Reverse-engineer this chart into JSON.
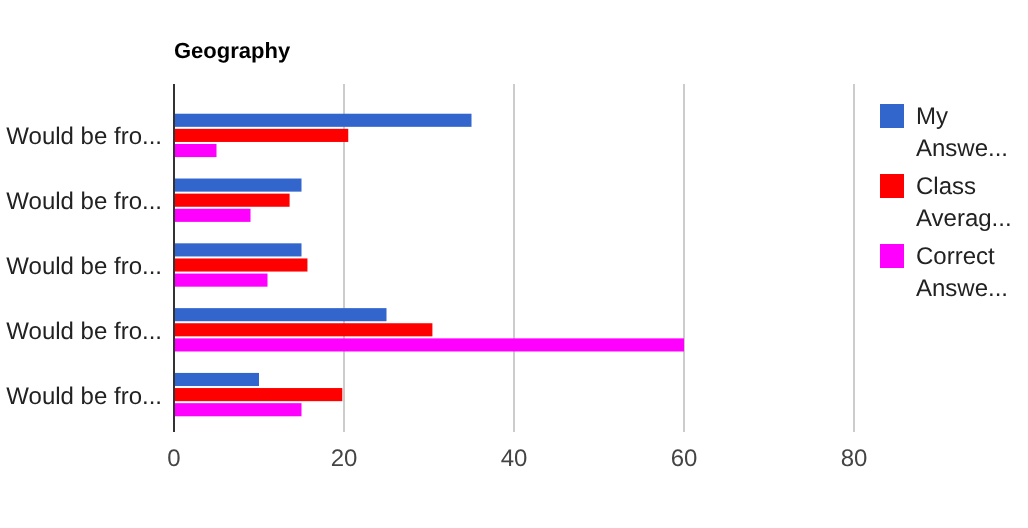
{
  "chart_data": {
    "type": "bar",
    "orientation": "horizontal",
    "title": "Geography",
    "categories": [
      "Would be fro...",
      "Would be fro...",
      "Would be fro...",
      "Would be fro...",
      "Would be fro..."
    ],
    "series": [
      {
        "name": "My Answe...",
        "color": "#3366cc",
        "values": [
          35,
          15,
          15,
          25,
          10
        ]
      },
      {
        "name": "Class Averag...",
        "color": "#ff0000",
        "values": [
          20.5,
          13.6,
          15.7,
          30.4,
          19.8
        ]
      },
      {
        "name": "Correct Answe...",
        "color": "#ff00ff",
        "values": [
          5,
          9,
          11,
          60,
          15
        ]
      }
    ],
    "xlim": [
      0,
      80
    ],
    "xticks": [
      0,
      20,
      40,
      60,
      80
    ],
    "grid": "x",
    "legend": "right"
  }
}
